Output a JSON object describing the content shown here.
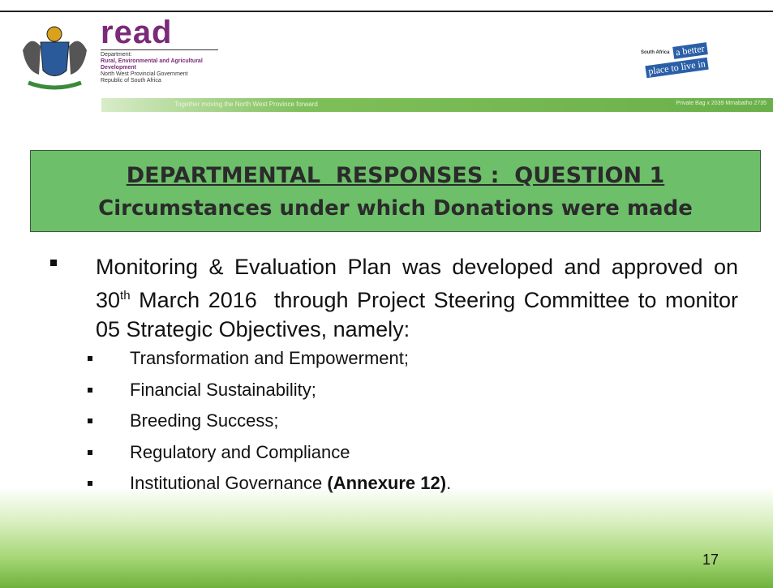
{
  "header": {
    "logo_text": "read",
    "dept_label": "Department:",
    "dept_name_1": "Rural, Environmental and Agricultural",
    "dept_name_2": "Development",
    "government": "North West Provincial Government",
    "country": "Republic of South Africa",
    "tagline": "Together moving the North West Province forward",
    "address": "Private Bag x 2039 Mmabatho 2735",
    "badge_country": "South Africa",
    "badge_line_1": "a better",
    "badge_line_2": "place to live in"
  },
  "title": {
    "line_1": "DEPARTMENTAL  RESPONSES :  QUESTION 1",
    "line_2": "Circumstances under which Donations were made"
  },
  "body": {
    "main_bullet": {
      "part_1": "Monitoring & Evaluation Plan was developed and approved on 30",
      "superscript": "th",
      "part_2": " March 2016  through Project Steering Committee to monitor 05 Strategic Objectives, namely:"
    },
    "sub_bullets": [
      "Transformation and Empowerment;",
      "Financial Sustainability;",
      "Breeding Success;",
      "Regulatory and Compliance"
    ],
    "last_bullet": {
      "text": "Institutional Governance ",
      "bold": "(Annexure 12)",
      "end": "."
    }
  },
  "page_number": 17
}
